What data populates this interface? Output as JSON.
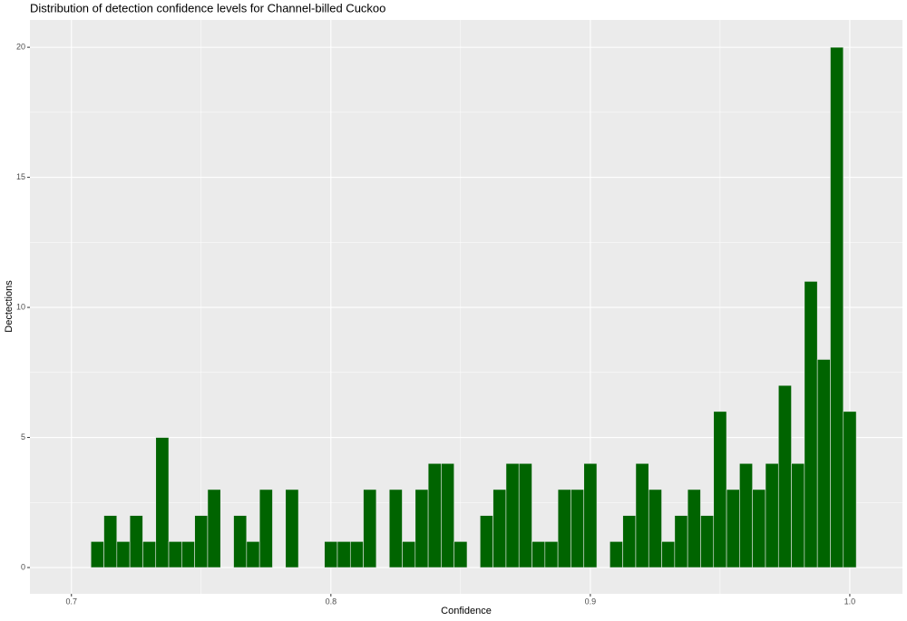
{
  "chart_data": {
    "type": "histogram",
    "title": "Distribution of detection confidence levels for Channel-billed Cuckoo",
    "x_label": "Confidence",
    "y_label": "Dectections",
    "bins": [
      0.7075,
      0.7125,
      0.7175,
      0.7225,
      0.7275,
      0.7325,
      0.7375,
      0.7425,
      0.7475,
      0.7525,
      0.7575,
      0.7625,
      0.7675,
      0.7725,
      0.7775,
      0.7825,
      0.7875,
      0.7925,
      0.7975,
      0.8025,
      0.8075,
      0.8125,
      0.8175,
      0.8225,
      0.8275,
      0.8325,
      0.8375,
      0.8425,
      0.8475,
      0.8525,
      0.8575,
      0.8625,
      0.8675,
      0.8725,
      0.8775,
      0.8825,
      0.8875,
      0.8925,
      0.8975,
      0.9025,
      0.9075,
      0.9125,
      0.9175,
      0.9225,
      0.9275,
      0.9325,
      0.9375,
      0.9425,
      0.9475,
      0.9525,
      0.9575,
      0.9625,
      0.9675,
      0.9725,
      0.9775,
      0.9825,
      0.9875,
      0.9925,
      0.9975,
      1.0025
    ],
    "values": [
      1,
      2,
      1,
      2,
      1,
      5,
      1,
      1,
      2,
      3,
      0,
      2,
      1,
      3,
      0,
      3,
      0,
      0,
      1,
      1,
      1,
      3,
      0,
      3,
      1,
      3,
      4,
      4,
      1,
      0,
      2,
      3,
      4,
      4,
      1,
      1,
      3,
      3,
      4,
      0,
      1,
      2,
      4,
      3,
      1,
      2,
      3,
      2,
      6,
      3,
      4,
      3,
      4,
      7,
      4,
      11,
      8,
      20,
      6
    ],
    "color": "#006400",
    "xlim": [
      0.684,
      1.0203
    ],
    "xticks": [
      0.7,
      0.8,
      0.9,
      {
        "value": 1.0,
        "label": "1.0"
      }
    ],
    "ylim": [
      -1.01,
      21.05
    ],
    "yticks": [
      0,
      5,
      10,
      15,
      20
    ],
    "grid": true
  }
}
